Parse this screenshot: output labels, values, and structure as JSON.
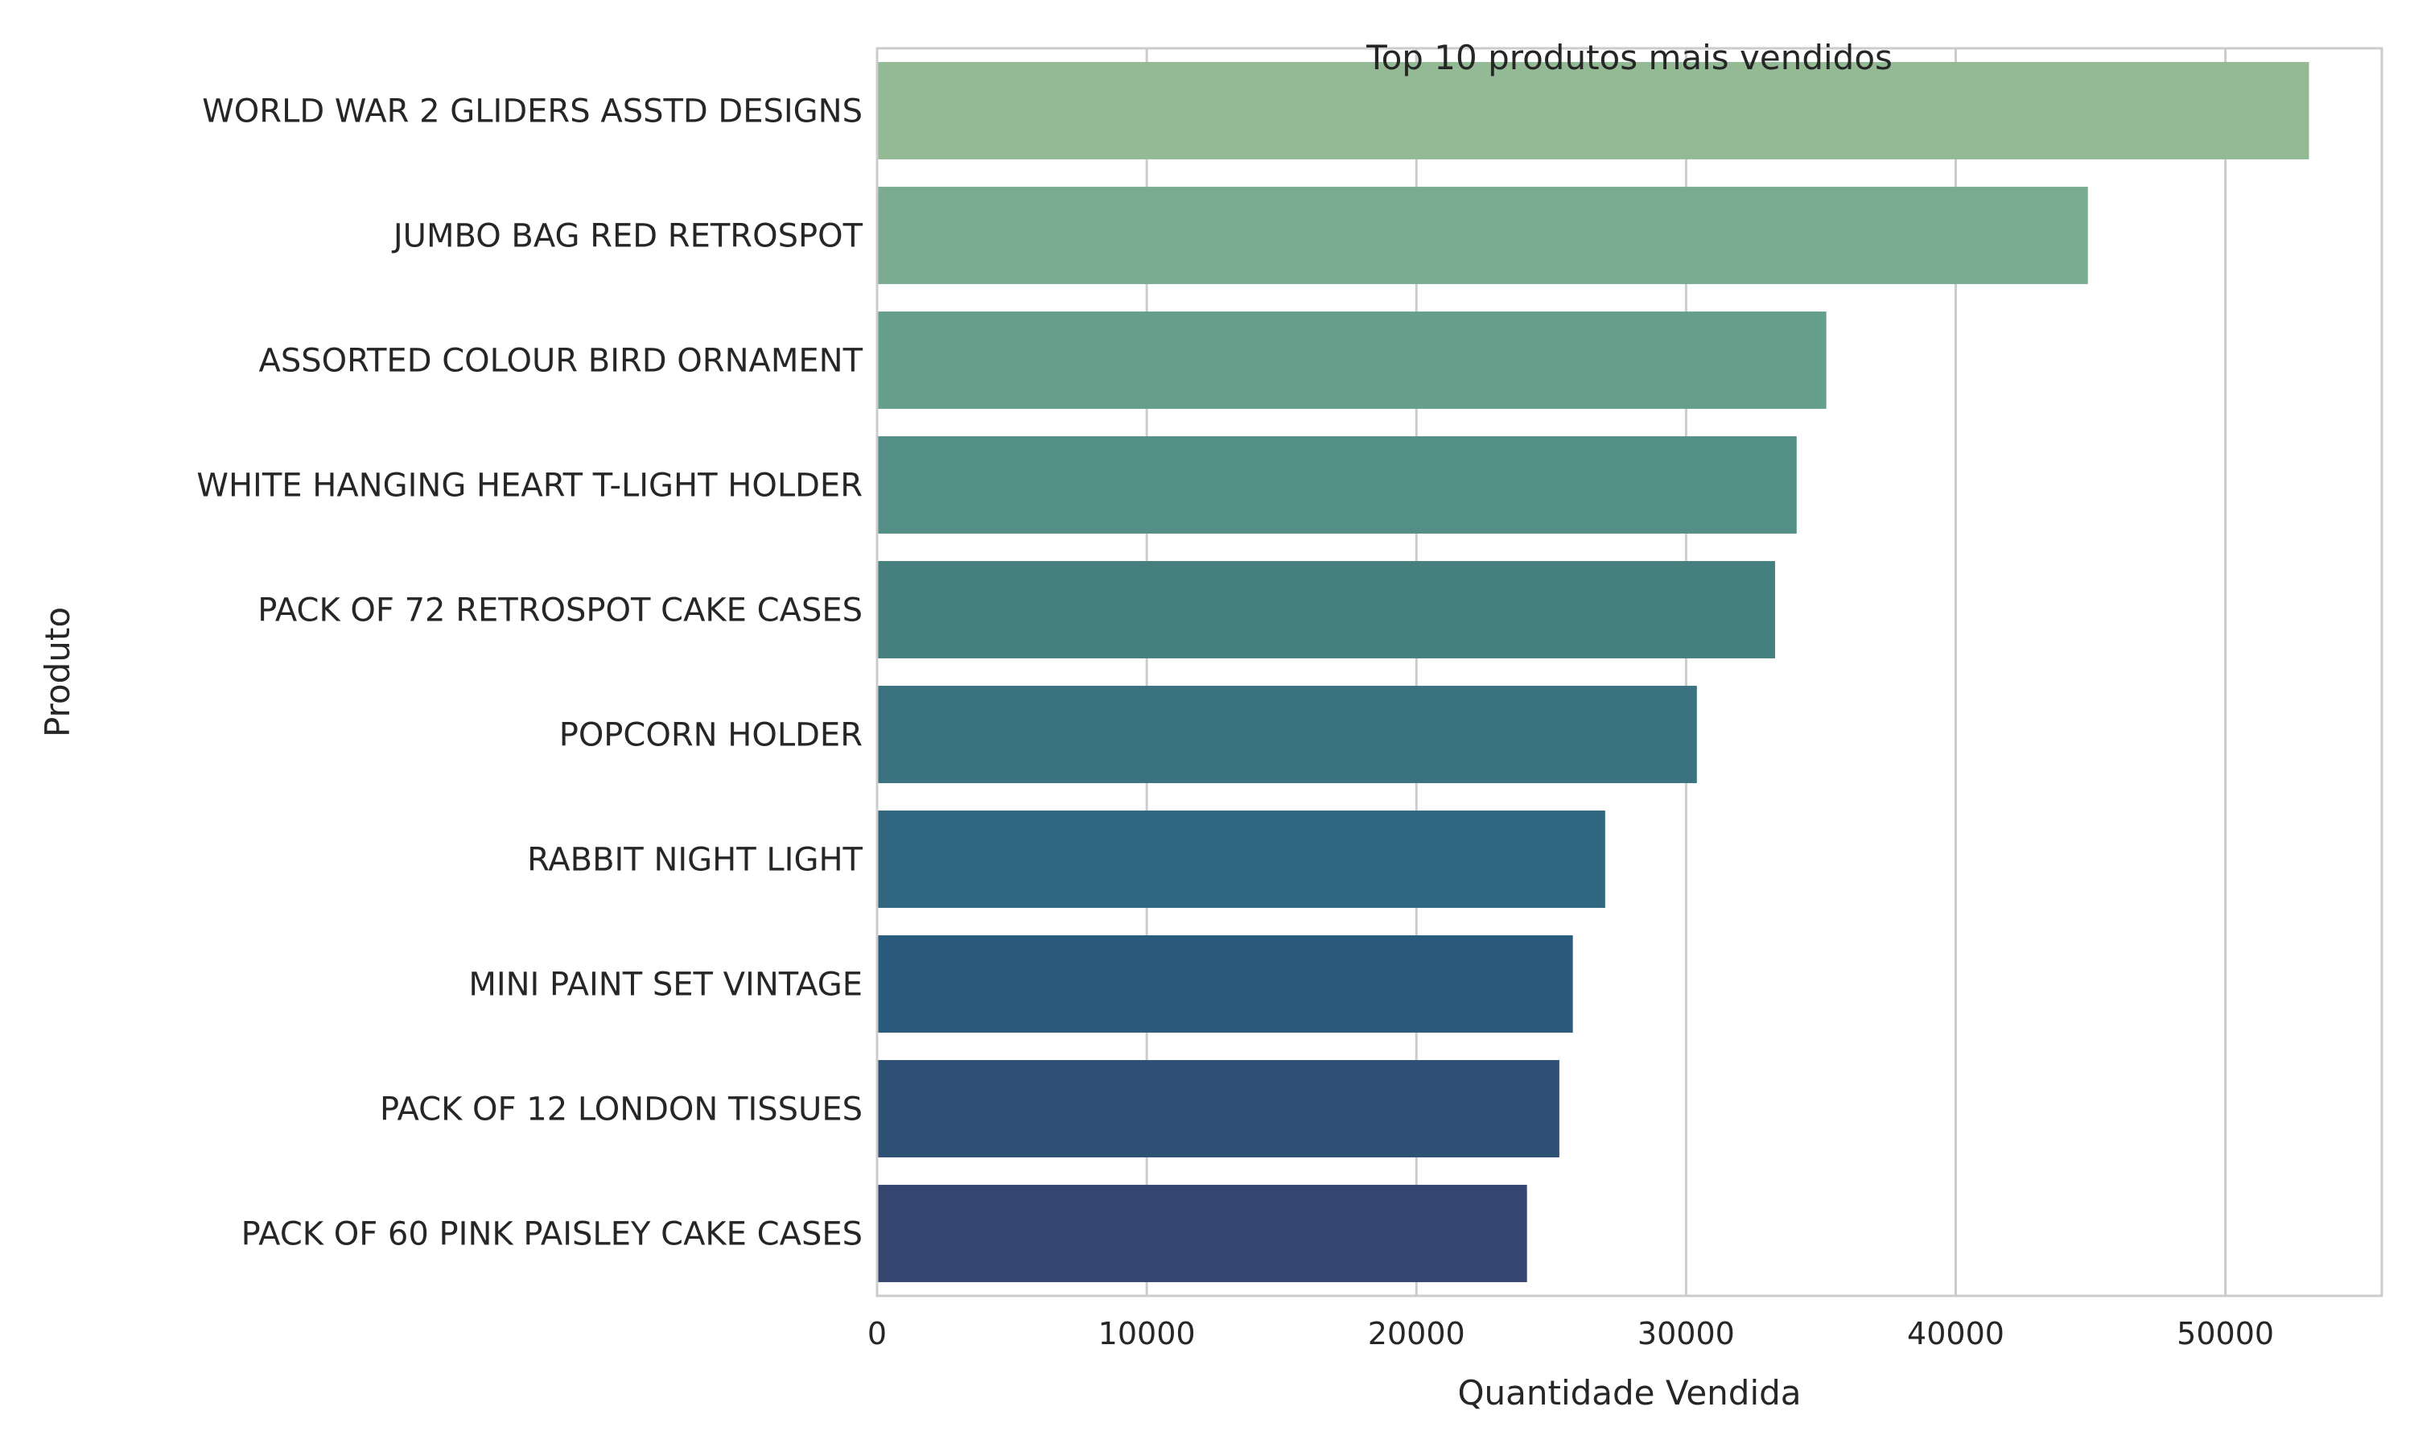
{
  "chart_data": {
    "type": "bar",
    "orientation": "horizontal",
    "title": "Top 10 produtos mais vendidos",
    "xlabel": "Quantidade Vendida",
    "ylabel": "Produto",
    "categories": [
      "WORLD WAR 2 GLIDERS ASSTD DESIGNS",
      "JUMBO BAG RED RETROSPOT",
      "ASSORTED COLOUR BIRD ORNAMENT",
      "WHITE HANGING HEART T-LIGHT HOLDER",
      "PACK OF 72 RETROSPOT CAKE CASES",
      "POPCORN HOLDER",
      "RABBIT NIGHT LIGHT",
      "MINI PAINT SET VINTAGE ",
      "PACK OF 12 LONDON TISSUES ",
      "PACK OF 60 PINK PAISLEY CAKE CASES"
    ],
    "values": [
      53100,
      44900,
      35200,
      34100,
      33300,
      30400,
      27000,
      25800,
      25300,
      24100
    ],
    "xlim": [
      0,
      55800
    ],
    "xticks": [
      0,
      10000,
      20000,
      30000,
      40000,
      50000
    ],
    "xtick_labels": [
      "0",
      "10000",
      "20000",
      "30000",
      "40000",
      "50000"
    ],
    "grid": true,
    "colors": [
      "#93ba94",
      "#7bac91",
      "#669f8c",
      "#538f86",
      "#45807f",
      "#3a7280",
      "#306680",
      "#2b5b7c",
      "#2e5075",
      "#34456f"
    ],
    "grid_color": "#cccccc",
    "spine_color": "#cccccc"
  }
}
